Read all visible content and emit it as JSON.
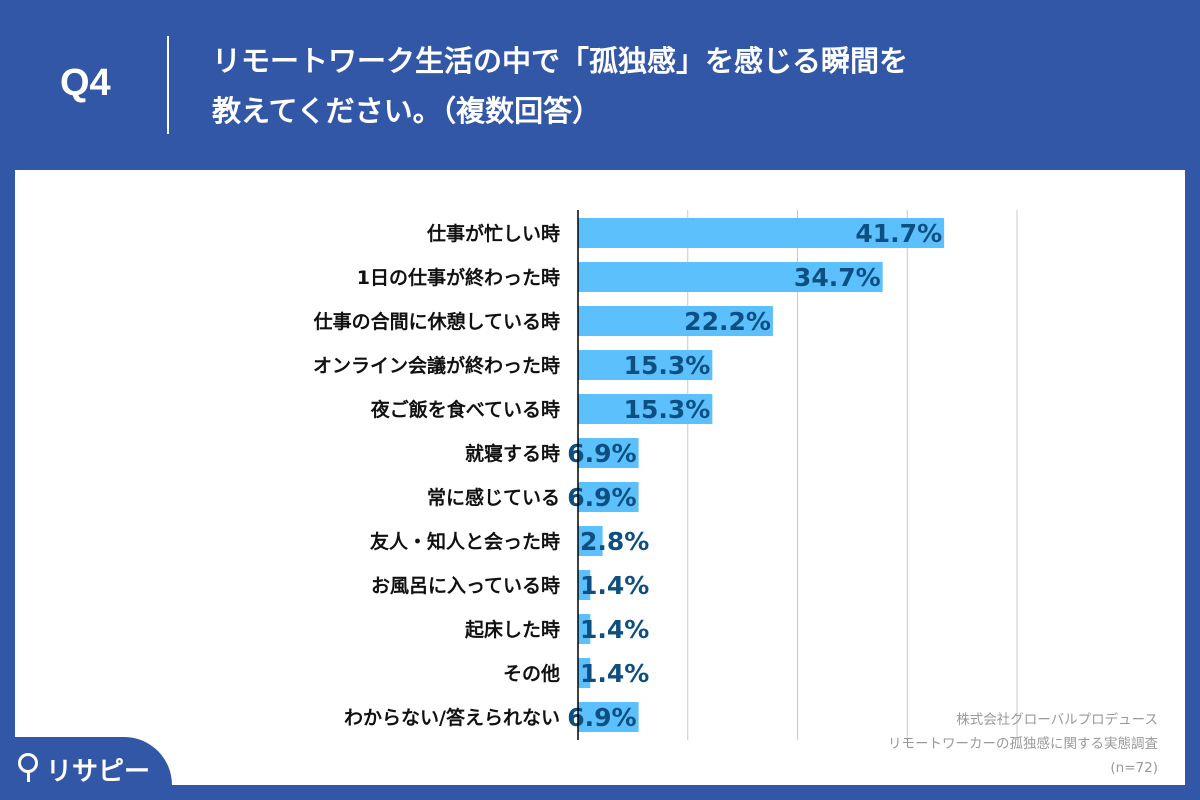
{
  "header": {
    "question_no": "Q4",
    "title_line1": "リモートワーク生活の中で「孤独感」を感じる瞬間を",
    "title_line2": "教えてください。（複数回答）"
  },
  "source": {
    "line1": "株式会社グローバルプロデュース",
    "line2": "リモートワーカーの孤独感に関する実態調査",
    "line3": "(n=72)"
  },
  "logo": {
    "text": "リサピー",
    "icon": "pin-icon"
  },
  "colors": {
    "background": "#3357a7",
    "bar": "#5bc0fb",
    "value_label": "#0d4f80",
    "grid": "#c8c8c8"
  },
  "chart_data": {
    "type": "bar",
    "orientation": "horizontal",
    "categories": [
      "仕事が忙しい時",
      "1日の仕事が終わった時",
      "仕事の合間に休憩している時",
      "オンライン会議が終わった時",
      "夜ご飯を食べている時",
      "就寝する時",
      "常に感じている",
      "友人・知人と会った時",
      "お風呂に入っている時",
      "起床した時",
      "その他",
      "わからない/答えられない"
    ],
    "values": [
      41.7,
      34.7,
      22.2,
      15.3,
      15.3,
      6.9,
      6.9,
      2.8,
      1.4,
      1.4,
      1.4,
      6.9
    ],
    "value_labels": [
      "41.7%",
      "34.7%",
      "22.2%",
      "15.3%",
      "15.3%",
      "6.9%",
      "6.9%",
      "2.8%",
      "1.4%",
      "1.4%",
      "1.4%",
      "6.9%"
    ],
    "xlim": [
      0,
      50
    ],
    "grid": true,
    "grid_step": 12.5,
    "xlabel": "",
    "ylabel": "",
    "title": ""
  }
}
